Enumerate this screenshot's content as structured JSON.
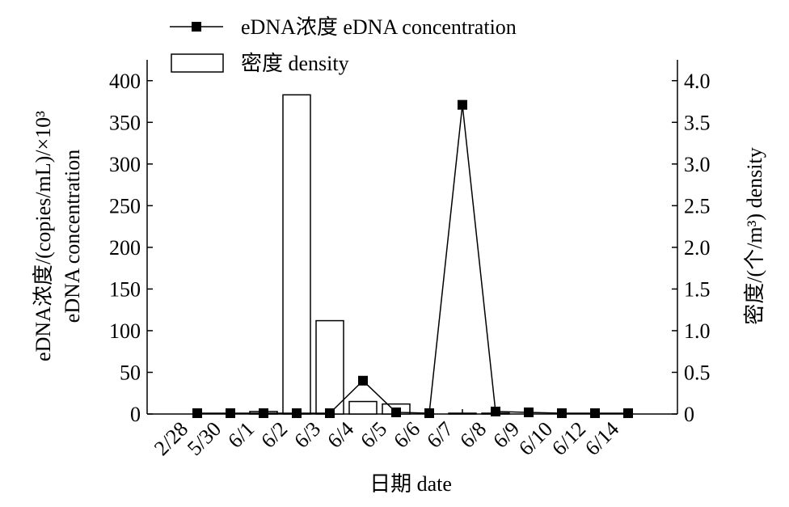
{
  "chart_data": {
    "type": "bar-line",
    "xlabel": "日期 date",
    "ylabel": [
      "eDNA浓度/(copies/mL)/×10³",
      "eDNA concentration"
    ],
    "y2label": "密度/(个/m³) density",
    "categories": [
      "2/28",
      "5/30",
      "6/1",
      "6/2",
      "6/3",
      "6/4",
      "6/5",
      "6/6",
      "6/7",
      "6/8",
      "6/9",
      "6/10",
      "6/12",
      "6/14"
    ],
    "series": [
      {
        "name": "eDNA浓度 eDNA concentration",
        "kind": "line",
        "color": "#000000",
        "axis": "y",
        "values": [
          1,
          1,
          1,
          1,
          1,
          40,
          2,
          1,
          371,
          3,
          2,
          1,
          1,
          1
        ]
      },
      {
        "name": "密度 density",
        "kind": "bar",
        "color": "#ffffff",
        "axis": "y2",
        "values": [
          0,
          0,
          0.03,
          3.83,
          1.12,
          0.15,
          0.12,
          0,
          0.01,
          0.01,
          0,
          0,
          0,
          0
        ]
      }
    ],
    "ylim": [
      0,
      425
    ],
    "yticks": [
      0,
      50,
      100,
      150,
      200,
      250,
      300,
      350,
      400
    ],
    "y2lim": [
      0,
      4.25
    ],
    "y2ticks": [
      0,
      {
        "value": 0.5,
        "label": "0.5"
      },
      {
        "value": 1,
        "label": "1.0"
      },
      {
        "value": 1.5,
        "label": "1.5"
      },
      {
        "value": 2,
        "label": "2.0"
      },
      {
        "value": 2.5,
        "label": "2.5"
      },
      {
        "value": 3,
        "label": "3.0"
      },
      {
        "value": 3.5,
        "label": "3.5"
      },
      {
        "value": 4,
        "label": "4.0"
      }
    ],
    "grid": false
  }
}
